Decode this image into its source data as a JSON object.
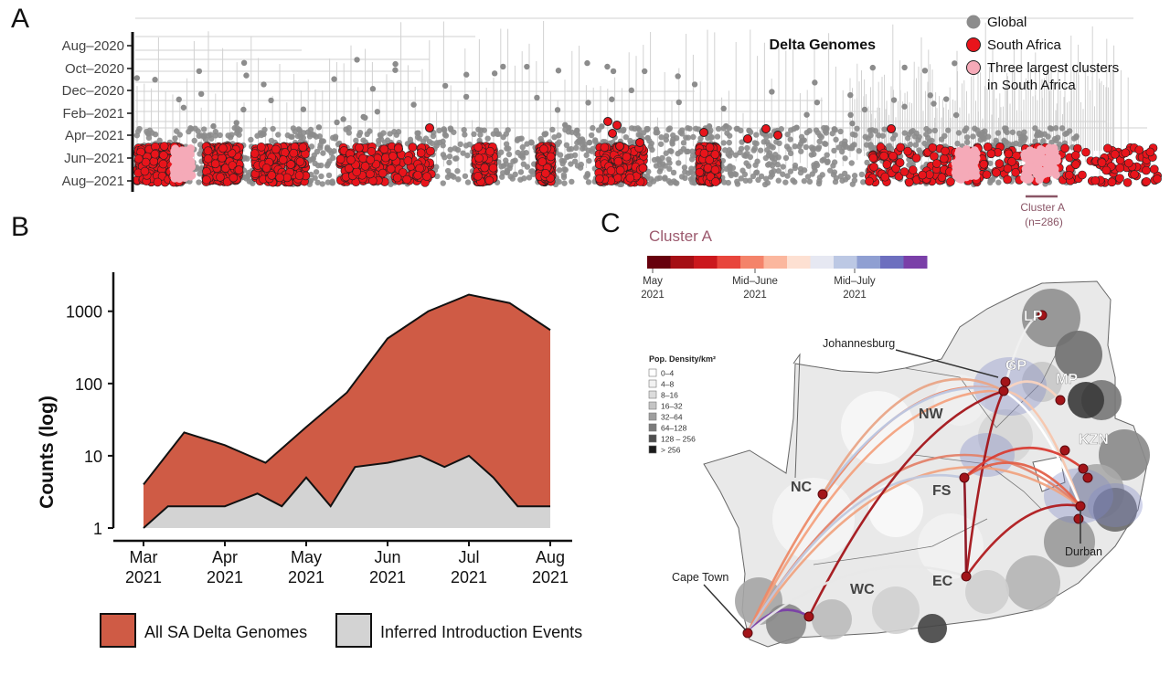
{
  "panels": {
    "a": {
      "letter": "A"
    },
    "b": {
      "letter": "B"
    },
    "c": {
      "letter": "C"
    }
  },
  "chart_data": [
    {
      "type": "scatter",
      "panel": "A",
      "title": "Delta Genomes",
      "y_tick_labels": [
        "Aug–2020",
        "Oct–2020",
        "Dec–2020",
        "Feb–2021",
        "Apr–2021",
        "Jun–2021",
        "Aug–2021"
      ],
      "legend": [
        {
          "name": "Global",
          "color": "#8c8c8c"
        },
        {
          "name": "South Africa",
          "color": "#e8141b"
        },
        {
          "name": "Three largest clusters\nin South Africa",
          "color": "#f5aab8"
        }
      ],
      "annotations": [
        {
          "text": "Cluster A\n(n=286)",
          "color": "#8a5566"
        }
      ],
      "colors": {
        "tree": "#d2d2d2",
        "global": "#8c8c8c",
        "sa": "#e8141b",
        "cluster": "#f5aab8"
      }
    },
    {
      "type": "area",
      "panel": "B",
      "x": [
        "Mar 2021",
        "Mar 2021 (mid)",
        "Apr 2021",
        "Apr 2021 (mid)",
        "May 2021",
        "May 2021 (mid)",
        "Jun 2021",
        "Jun 2021 (mid)",
        "Jul 2021",
        "Jul 2021 (mid)",
        "Aug 2021"
      ],
      "x_tick_labels": [
        "Mar\n2021",
        "Apr\n2021",
        "May\n2021",
        "Jun\n2021",
        "Jul\n2021",
        "Aug\n2021"
      ],
      "ylabel": "Counts (log)",
      "y_scale": "log",
      "ylim": [
        1,
        3000
      ],
      "y_ticks": [
        1,
        10,
        100,
        1000
      ],
      "y_tick_labels": [
        "1",
        "10",
        "100",
        "1000"
      ],
      "series": [
        {
          "name": "All SA Delta Genomes",
          "color": "#cf5b45",
          "points": [
            [
              0,
              4
            ],
            [
              0.5,
              21
            ],
            [
              1,
              14
            ],
            [
              1.5,
              8
            ],
            [
              2,
              25
            ],
            [
              2.5,
              75
            ],
            [
              3,
              420
            ],
            [
              3.5,
              1000
            ],
            [
              4,
              1700
            ],
            [
              4.5,
              1300
            ],
            [
              5,
              550
            ]
          ]
        },
        {
          "name": "Inferred Introduction Events",
          "color": "#d3d3d3",
          "points": [
            [
              0,
              1
            ],
            [
              0.3,
              2
            ],
            [
              1,
              2
            ],
            [
              1.4,
              3
            ],
            [
              1.7,
              2
            ],
            [
              2,
              5
            ],
            [
              2.3,
              2
            ],
            [
              2.6,
              7
            ],
            [
              3,
              8
            ],
            [
              3.4,
              10
            ],
            [
              3.7,
              7
            ],
            [
              4,
              10
            ],
            [
              4.3,
              5
            ],
            [
              4.6,
              2
            ],
            [
              5,
              2
            ]
          ]
        }
      ],
      "legend_position": "bottom"
    },
    {
      "type": "map",
      "panel": "C",
      "title": "Cluster A",
      "colorbar_ticks": [
        {
          "label": "May\n2021"
        },
        {
          "label": "Mid–June\n2021"
        },
        {
          "label": "Mid–July\n2021"
        }
      ],
      "colorbar_colors": [
        "#67000d",
        "#a50f15",
        "#cb181d",
        "#e8453c",
        "#f4836a",
        "#fbb79e",
        "#fde0d2",
        "#e6e8f2",
        "#bcc8e4",
        "#8f9fd2",
        "#6d6fbf",
        "#7a3fa8"
      ],
      "density_legend_title": "Pop. Density/km²",
      "density_legend": [
        {
          "label": "0–4",
          "color": "#ffffff"
        },
        {
          "label": "4–8",
          "color": "#f2f2f2"
        },
        {
          "label": "8–16",
          "color": "#dcdcdc"
        },
        {
          "label": "16–32",
          "color": "#c4c4c4"
        },
        {
          "label": "32–64",
          "color": "#9e9e9e"
        },
        {
          "label": "64–128",
          "color": "#7a7a7a"
        },
        {
          "label": "128 – 256",
          "color": "#4d4d4d"
        },
        {
          "label": "> 256",
          "color": "#1a1a1a"
        }
      ],
      "province_labels": [
        "LP",
        "GP",
        "MP",
        "NW",
        "KZN",
        "NC",
        "FS",
        "WC",
        "EC"
      ],
      "city_labels": [
        "Johannesburg",
        "Durban",
        "Cape Town"
      ]
    }
  ]
}
